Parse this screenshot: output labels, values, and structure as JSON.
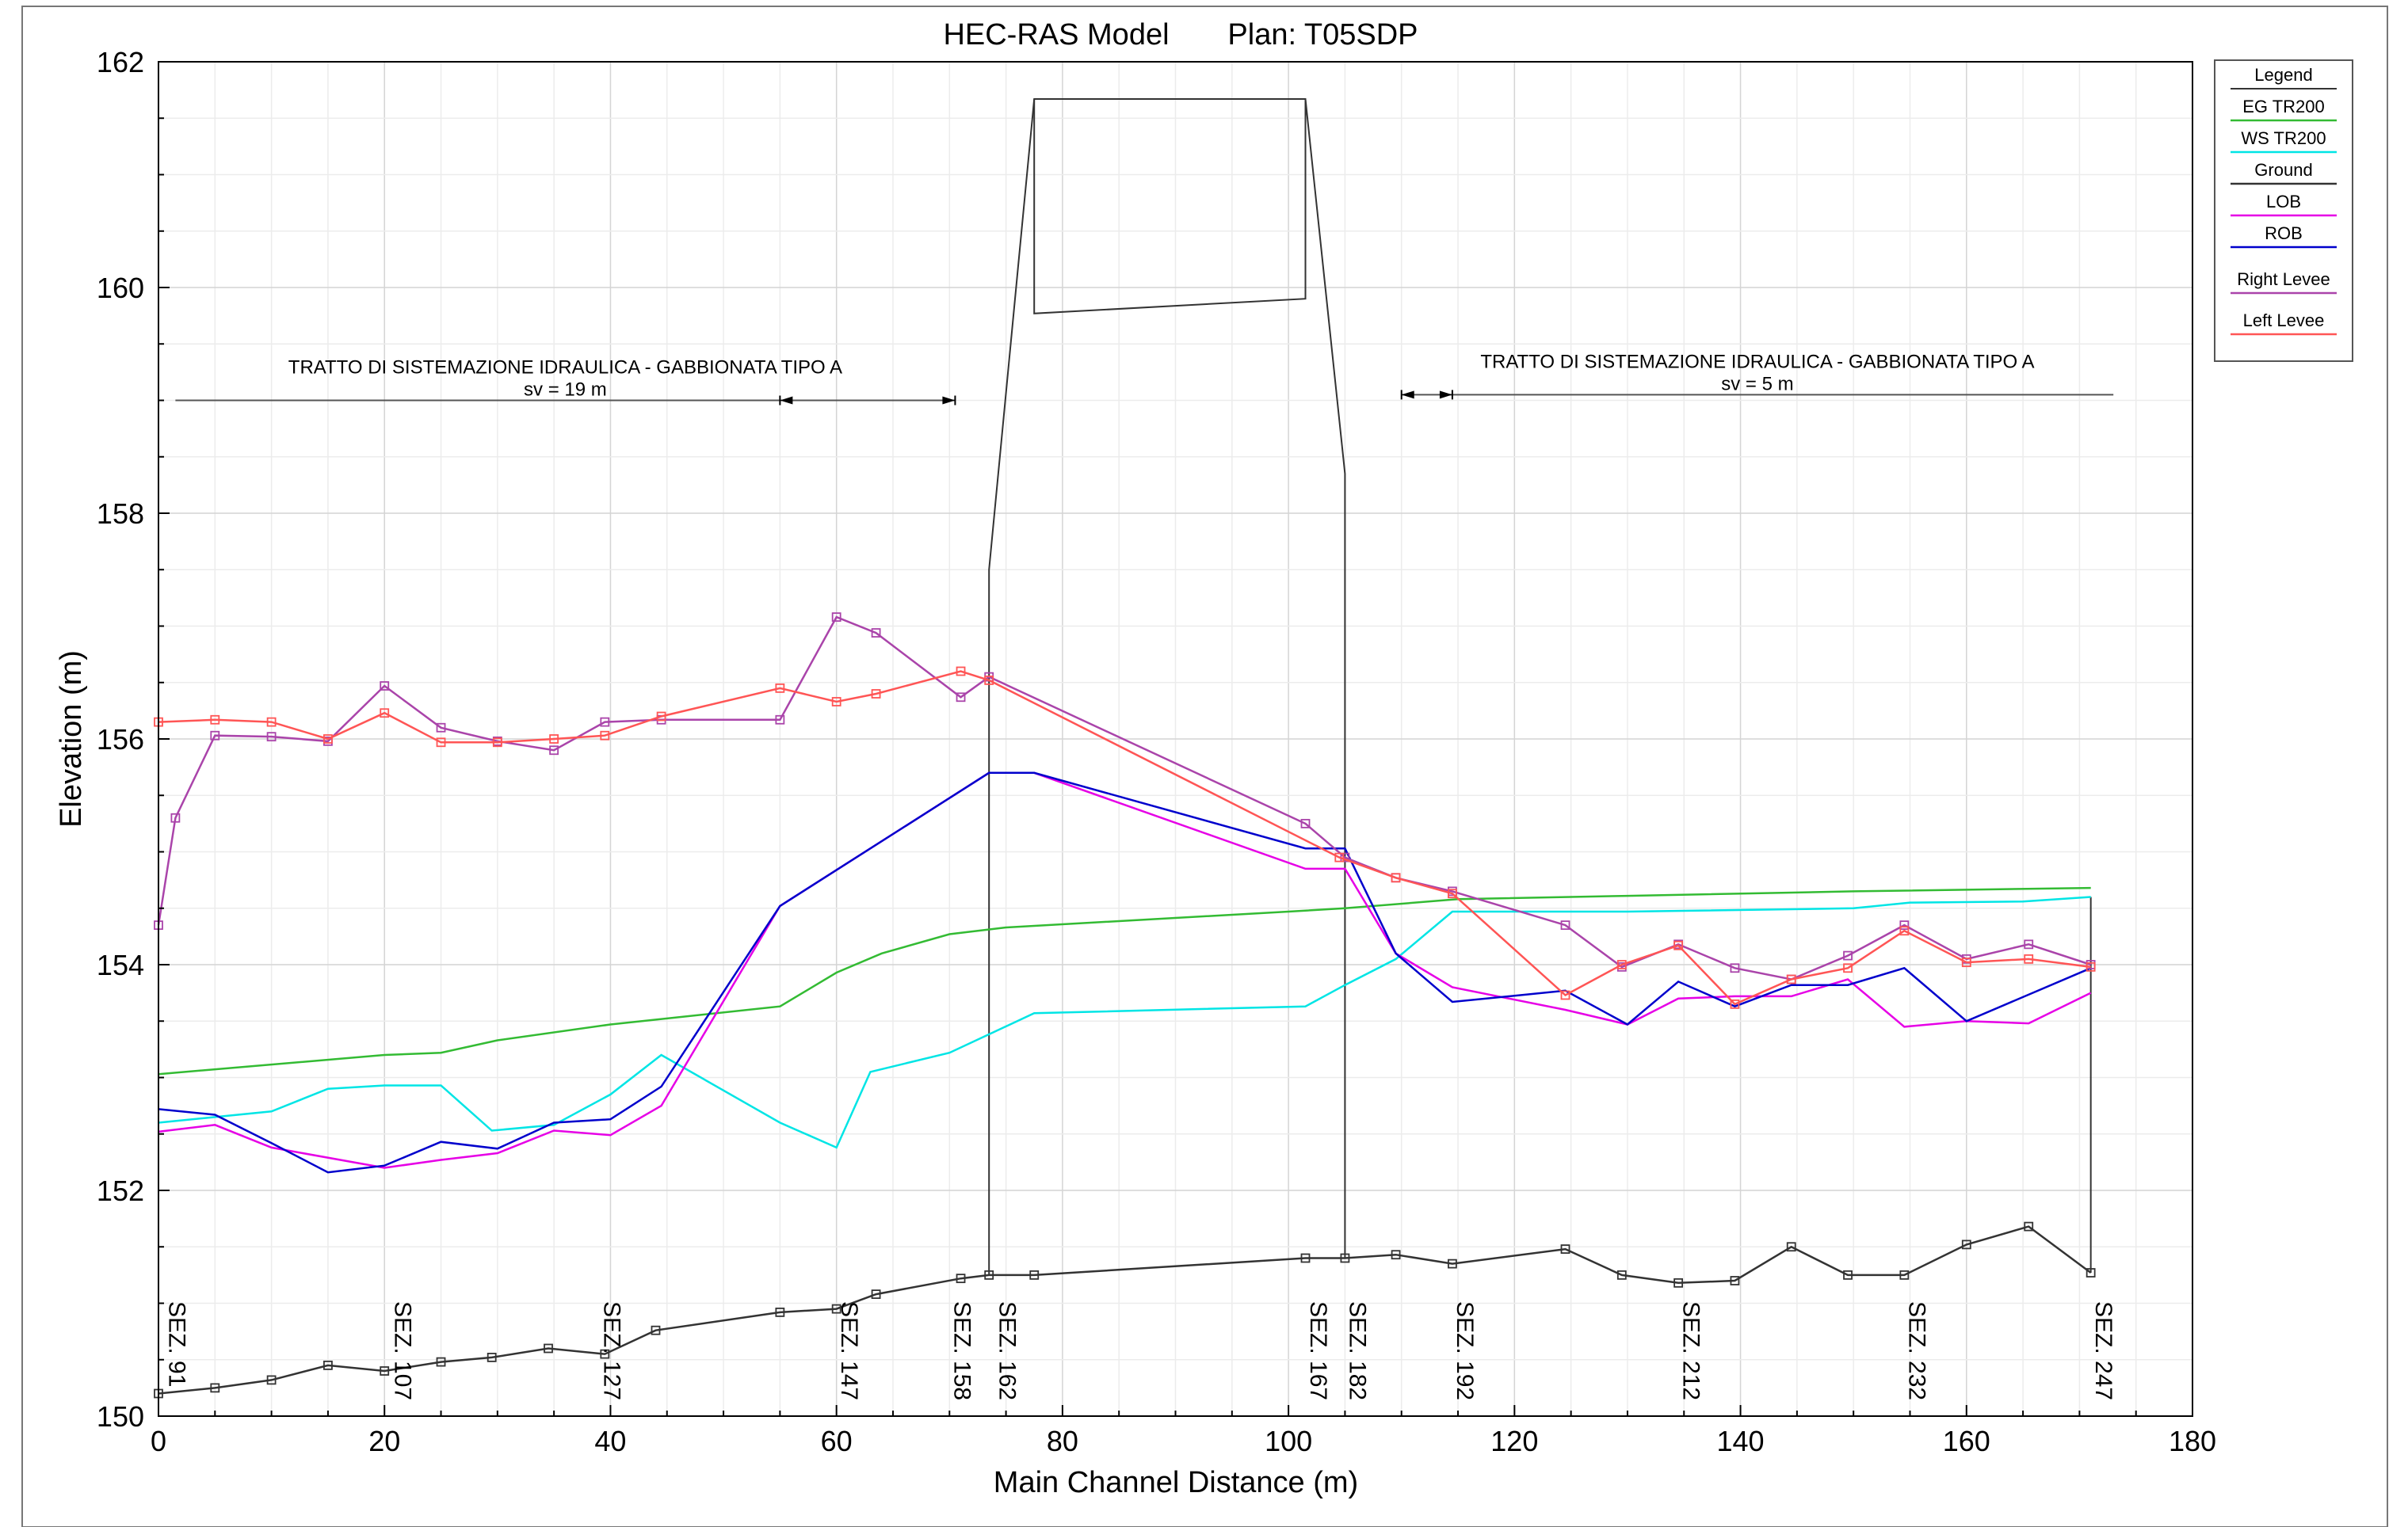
{
  "chart_data": {
    "type": "line",
    "title": "HEC-RAS Model       Plan: T05SDP",
    "xlabel": "Main Channel Distance (m)",
    "ylabel": "Elevation (m)",
    "xlim": [
      0,
      180
    ],
    "ylim": [
      150,
      162
    ],
    "x_ticks": [
      0,
      20,
      40,
      60,
      80,
      100,
      120,
      140,
      160,
      180
    ],
    "y_ticks": [
      150,
      152,
      154,
      156,
      158,
      160,
      162
    ],
    "grid": true,
    "legend_position": "right",
    "legend": {
      "title": "Legend",
      "entries": [
        {
          "label": "EG  TR200",
          "color": "#33bb33"
        },
        {
          "label": "WS  TR200",
          "color": "#00e5e5"
        },
        {
          "label": "Ground",
          "color": "#333333"
        },
        {
          "label": "LOB",
          "color": "#e600e6"
        },
        {
          "label": "ROB",
          "color": "#0000cc"
        },
        {
          "label": "Right Levee",
          "color": "#aa44aa"
        },
        {
          "label": "Left Levee",
          "color": "#ff5555"
        }
      ]
    },
    "series": [
      {
        "name": "EG  TR200",
        "color": "#33bb33",
        "x": [
          0,
          20,
          25,
          30,
          40,
          55,
          60,
          64,
          70,
          75,
          100,
          105,
          115,
          130,
          150,
          171
        ],
        "y": [
          153.03,
          153.2,
          153.22,
          153.33,
          153.47,
          153.63,
          153.93,
          154.1,
          154.27,
          154.33,
          154.47,
          154.5,
          154.58,
          154.61,
          154.65,
          154.68
        ]
      },
      {
        "name": "WS  TR200",
        "color": "#00e5e5",
        "x": [
          0,
          5,
          10,
          15,
          20,
          25,
          29.5,
          35,
          40,
          44.5,
          55,
          60,
          63,
          70,
          77.5,
          101.5,
          105,
          109.5,
          114.5,
          120,
          130,
          150,
          155,
          165,
          171
        ],
        "y": [
          152.6,
          152.65,
          152.7,
          152.9,
          152.93,
          152.93,
          152.53,
          152.58,
          152.85,
          153.2,
          152.6,
          152.38,
          153.05,
          153.22,
          153.57,
          153.63,
          153.82,
          154.05,
          154.47,
          154.47,
          154.47,
          154.5,
          154.55,
          154.56,
          154.6
        ]
      },
      {
        "name": "Ground",
        "color": "#333333",
        "x": [
          0,
          5,
          10,
          15,
          20,
          25,
          29.5,
          34.5,
          39.5,
          44,
          55,
          60,
          63.5,
          71,
          73.5,
          77.5,
          101.5,
          105,
          109.5,
          114.5,
          124.5,
          129.5,
          134.5,
          139.5,
          144.5,
          149.5,
          154.5,
          160,
          165.5,
          171
        ],
        "y": [
          150.2,
          150.25,
          150.32,
          150.45,
          150.4,
          150.48,
          150.52,
          150.6,
          150.55,
          150.76,
          150.92,
          150.95,
          151.08,
          151.22,
          151.25,
          151.25,
          151.4,
          151.4,
          151.43,
          151.35,
          151.48,
          151.25,
          151.18,
          151.2,
          151.5,
          151.25,
          151.25,
          151.52,
          151.68,
          151.27
        ]
      },
      {
        "name": "LOB",
        "color": "#e600e6",
        "x": [
          0,
          5,
          10,
          20,
          25,
          30,
          35,
          40,
          44.5,
          55,
          73.5,
          77.5,
          101.5,
          105,
          109.5,
          114.5,
          124.5,
          130,
          134.5,
          139.5,
          144.5,
          149.5,
          154.5,
          160,
          165.5,
          171
        ],
        "y": [
          152.52,
          152.58,
          152.38,
          152.2,
          152.27,
          152.33,
          152.53,
          152.49,
          152.75,
          154.52,
          155.7,
          155.7,
          154.85,
          154.85,
          154.1,
          153.8,
          153.6,
          153.47,
          153.7,
          153.72,
          153.72,
          153.87,
          153.45,
          153.5,
          153.48,
          153.75
        ]
      },
      {
        "name": "ROB",
        "color": "#0000cc",
        "x": [
          0,
          5,
          10,
          15,
          20,
          25,
          30,
          35,
          40,
          44.5,
          55,
          73.5,
          77.5,
          101.5,
          105,
          109.5,
          114.5,
          124.5,
          130,
          134.5,
          139.5,
          144.5,
          149.5,
          154.5,
          160,
          171
        ],
        "y": [
          152.72,
          152.67,
          152.42,
          152.16,
          152.22,
          152.43,
          152.37,
          152.6,
          152.63,
          152.92,
          154.52,
          155.7,
          155.7,
          155.03,
          155.03,
          154.1,
          153.67,
          153.77,
          153.47,
          153.85,
          153.63,
          153.82,
          153.82,
          153.97,
          153.5,
          153.97
        ]
      },
      {
        "name": "Right Levee",
        "color": "#aa44aa",
        "x": [
          0,
          1.5,
          5,
          10,
          15,
          20,
          25,
          30,
          35,
          39.5,
          44.5,
          55,
          60,
          63.5,
          71,
          73.5,
          101.5,
          105,
          109.5,
          114.5,
          124.5,
          129.5,
          134.5,
          139.5,
          144.5,
          149.5,
          154.5,
          160,
          165.5,
          171
        ],
        "y": [
          154.35,
          155.3,
          156.03,
          156.02,
          155.98,
          156.47,
          156.1,
          155.98,
          155.9,
          156.15,
          156.17,
          156.17,
          157.08,
          156.94,
          156.37,
          156.55,
          155.25,
          154.95,
          154.77,
          154.65,
          154.35,
          153.98,
          154.18,
          153.97,
          153.87,
          154.08,
          154.35,
          154.05,
          154.18,
          154.0
        ]
      },
      {
        "name": "Left Levee",
        "color": "#ff5555",
        "x": [
          0,
          5,
          10,
          15,
          20,
          25,
          30,
          35,
          39.5,
          44.5,
          55,
          60,
          63.5,
          71,
          73.5,
          104.5,
          109.5,
          114.5,
          124.5,
          129.5,
          134.5,
          139.5,
          144.5,
          149.5,
          154.5,
          160,
          165.5,
          171
        ],
        "y": [
          156.15,
          156.17,
          156.15,
          156.0,
          156.23,
          155.97,
          155.97,
          156.0,
          156.03,
          156.2,
          156.45,
          156.33,
          156.4,
          156.6,
          156.52,
          154.95,
          154.77,
          154.63,
          153.73,
          154.0,
          154.17,
          153.65,
          153.87,
          153.97,
          154.3,
          154.02,
          154.05,
          153.98
        ]
      }
    ],
    "sections": [
      {
        "label": "SEZ. 91",
        "x": 1.5
      },
      {
        "label": "SEZ. 107",
        "x": 21.5
      },
      {
        "label": "SEZ. 127",
        "x": 40
      },
      {
        "label": "SEZ. 147",
        "x": 61
      },
      {
        "label": "SEZ. 158",
        "x": 71
      },
      {
        "label": "SEZ. 162",
        "x": 75
      },
      {
        "label": "SEZ. 167",
        "x": 102.5
      },
      {
        "label": "SEZ. 182",
        "x": 106
      },
      {
        "label": "SEZ. 192",
        "x": 115.5
      },
      {
        "label": "SEZ. 212",
        "x": 135.5
      },
      {
        "label": "SEZ. 232",
        "x": 155.5
      },
      {
        "label": "SEZ. 247",
        "x": 172
      }
    ],
    "annotations": [
      {
        "text": "TRATTO DI SISTEMAZIONE IDRAULICA - GABBIONATA TIPO A",
        "sub": "sv = 19 m",
        "x_start": 1.5,
        "x_end": 70.5,
        "arrow_start": 55,
        "arrow_end": 70.5,
        "y": 159.0
      },
      {
        "text": "TRATTO DI SISTEMAZIONE IDRAULICA - GABBIONATA TIPO A",
        "sub": "sv = 5 m",
        "x_start": 110,
        "x_end": 173,
        "arrow_start": 110,
        "arrow_end": 114.5,
        "y": 159.05
      }
    ],
    "bridge": {
      "outline_x": [
        73.5,
        73.5,
        77.5,
        101.5,
        105,
        105
      ],
      "outline_y": [
        151.25,
        157.5,
        161.67,
        161.67,
        158.35,
        151.4
      ],
      "deck_x": [
        77.5,
        77.5,
        101.5,
        101.5
      ],
      "deck_y": [
        161.67,
        159.77,
        159.9,
        161.67
      ],
      "end_x": 171,
      "end_top": 154.6,
      "end_bottom": 151.27
    }
  }
}
